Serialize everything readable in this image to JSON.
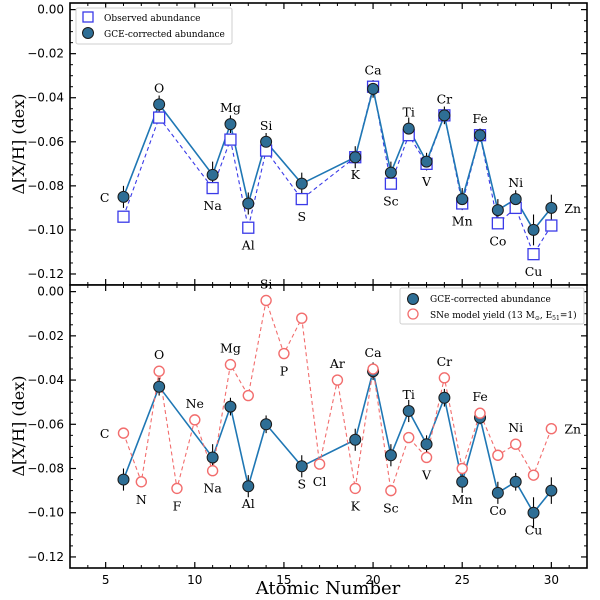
{
  "chart_data": [
    {
      "type": "scatter",
      "panel": "top",
      "xlim": [
        3,
        32
      ],
      "ylim": [
        -0.125,
        0.003
      ],
      "ylabel": "Δ[X/H] (dex)",
      "yticks": [
        0.0,
        -0.02,
        -0.04,
        -0.06,
        -0.08,
        -0.1,
        -0.12
      ],
      "ytick_labels": [
        "0.00",
        "−0.02",
        "−0.04",
        "−0.06",
        "−0.08",
        "−0.10",
        "−0.12"
      ],
      "legend": {
        "position": "top-left",
        "entries": [
          "Observed abundance",
          "GCE-corrected abundance"
        ]
      },
      "series": [
        {
          "name": "Observed abundance",
          "marker": "square",
          "color": "#3a3ae8",
          "line_style": "dashed",
          "points": [
            {
              "element": "C",
              "x": 6,
              "y": -0.094
            },
            {
              "element": "O",
              "x": 8,
              "y": -0.049
            },
            {
              "element": "Na",
              "x": 11,
              "y": -0.081
            },
            {
              "element": "Mg",
              "x": 12,
              "y": -0.059
            },
            {
              "element": "Al",
              "x": 13,
              "y": -0.099
            },
            {
              "element": "Si",
              "x": 14,
              "y": -0.064
            },
            {
              "element": "S",
              "x": 16,
              "y": -0.086
            },
            {
              "element": "K",
              "x": 19,
              "y": -0.067
            },
            {
              "element": "Ca",
              "x": 20,
              "y": -0.035
            },
            {
              "element": "Sc",
              "x": 21,
              "y": -0.079
            },
            {
              "element": "Ti",
              "x": 22,
              "y": -0.057
            },
            {
              "element": "V",
              "x": 23,
              "y": -0.07
            },
            {
              "element": "Cr",
              "x": 24,
              "y": -0.048
            },
            {
              "element": "Mn",
              "x": 25,
              "y": -0.088
            },
            {
              "element": "Fe",
              "x": 26,
              "y": -0.057
            },
            {
              "element": "Co",
              "x": 27,
              "y": -0.097
            },
            {
              "element": "Ni",
              "x": 28,
              "y": -0.09
            },
            {
              "element": "Cu",
              "x": 29,
              "y": -0.111
            },
            {
              "element": "Zn",
              "x": 30,
              "y": -0.098
            }
          ]
        },
        {
          "name": "GCE-corrected abundance",
          "marker": "circle",
          "color": "#2e6e95",
          "line_color": "#1f77b4",
          "line_style": "solid",
          "points": [
            {
              "element": "C",
              "x": 6,
              "y": -0.085,
              "err": 0.005
            },
            {
              "element": "O",
              "x": 8,
              "y": -0.043,
              "err": 0.004
            },
            {
              "element": "Na",
              "x": 11,
              "y": -0.075,
              "err": 0.006
            },
            {
              "element": "Mg",
              "x": 12,
              "y": -0.052,
              "err": 0.004
            },
            {
              "element": "Al",
              "x": 13,
              "y": -0.088,
              "err": 0.005
            },
            {
              "element": "Si",
              "x": 14,
              "y": -0.06,
              "err": 0.004
            },
            {
              "element": "S",
              "x": 16,
              "y": -0.079,
              "err": 0.005
            },
            {
              "element": "K",
              "x": 19,
              "y": -0.067,
              "err": 0.005
            },
            {
              "element": "Ca",
              "x": 20,
              "y": -0.036,
              "err": 0.004
            },
            {
              "element": "Sc",
              "x": 21,
              "y": -0.074,
              "err": 0.005
            },
            {
              "element": "Ti",
              "x": 22,
              "y": -0.054,
              "err": 0.005
            },
            {
              "element": "V",
              "x": 23,
              "y": -0.069,
              "err": 0.004
            },
            {
              "element": "Cr",
              "x": 24,
              "y": -0.048,
              "err": 0.004
            },
            {
              "element": "Mn",
              "x": 25,
              "y": -0.086,
              "err": 0.005
            },
            {
              "element": "Fe",
              "x": 26,
              "y": -0.057,
              "err": 0.003
            },
            {
              "element": "Co",
              "x": 27,
              "y": -0.091,
              "err": 0.005
            },
            {
              "element": "Ni",
              "x": 28,
              "y": -0.086,
              "err": 0.004
            },
            {
              "element": "Cu",
              "x": 29,
              "y": -0.1,
              "err": 0.007
            },
            {
              "element": "Zn",
              "x": 30,
              "y": -0.09,
              "err": 0.006
            }
          ]
        }
      ],
      "element_labels": [
        {
          "text": "C",
          "x": 6,
          "side": "left"
        },
        {
          "text": "O",
          "x": 8,
          "side": "above"
        },
        {
          "text": "Na",
          "x": 11,
          "side": "below"
        },
        {
          "text": "Mg",
          "x": 12,
          "side": "above"
        },
        {
          "text": "Al",
          "x": 13,
          "side": "below"
        },
        {
          "text": "Si",
          "x": 14,
          "side": "above"
        },
        {
          "text": "S",
          "x": 16,
          "side": "below"
        },
        {
          "text": "K",
          "x": 19,
          "side": "below"
        },
        {
          "text": "Ca",
          "x": 20,
          "side": "above"
        },
        {
          "text": "Sc",
          "x": 21,
          "side": "below"
        },
        {
          "text": "Ti",
          "x": 22,
          "side": "above"
        },
        {
          "text": "V",
          "x": 23,
          "side": "below"
        },
        {
          "text": "Cr",
          "x": 24,
          "side": "above"
        },
        {
          "text": "Mn",
          "x": 25,
          "side": "below"
        },
        {
          "text": "Fe",
          "x": 26,
          "side": "above"
        },
        {
          "text": "Co",
          "x": 27,
          "side": "below"
        },
        {
          "text": "Ni",
          "x": 28,
          "side": "above"
        },
        {
          "text": "Cu",
          "x": 29,
          "side": "below"
        },
        {
          "text": "Zn",
          "x": 30,
          "side": "right"
        }
      ]
    },
    {
      "type": "scatter",
      "panel": "bottom",
      "xlim": [
        3,
        32
      ],
      "ylim": [
        -0.125,
        0.003
      ],
      "xlabel": "Atomic Number",
      "ylabel": "Δ[X/H] (dex)",
      "xticks": [
        5,
        10,
        15,
        20,
        25,
        30
      ],
      "yticks": [
        0.0,
        -0.02,
        -0.04,
        -0.06,
        -0.08,
        -0.1,
        -0.12
      ],
      "ytick_labels": [
        "0.00",
        "−0.02",
        "−0.04",
        "−0.06",
        "−0.08",
        "−0.10",
        "−0.12"
      ],
      "legend": {
        "position": "top-right",
        "entries": [
          "GCE-corrected abundance",
          "SNe model yield (13 M",
          "⊙",
          ", E",
          "51",
          "=1)"
        ]
      },
      "series": [
        {
          "name": "GCE-corrected abundance",
          "marker": "circle",
          "color": "#2e6e95",
          "line_color": "#1f77b4",
          "line_style": "solid",
          "points": [
            {
              "element": "C",
              "x": 6,
              "y": -0.085,
              "err": 0.005
            },
            {
              "element": "O",
              "x": 8,
              "y": -0.043,
              "err": 0.004
            },
            {
              "element": "Na",
              "x": 11,
              "y": -0.075,
              "err": 0.006
            },
            {
              "element": "Mg",
              "x": 12,
              "y": -0.052,
              "err": 0.004
            },
            {
              "element": "Al",
              "x": 13,
              "y": -0.088,
              "err": 0.005
            },
            {
              "element": "Si",
              "x": 14,
              "y": -0.06,
              "err": 0.004
            },
            {
              "element": "S",
              "x": 16,
              "y": -0.079,
              "err": 0.005
            },
            {
              "element": "K",
              "x": 19,
              "y": -0.067,
              "err": 0.005
            },
            {
              "element": "Ca",
              "x": 20,
              "y": -0.036,
              "err": 0.004
            },
            {
              "element": "Sc",
              "x": 21,
              "y": -0.074,
              "err": 0.005
            },
            {
              "element": "Ti",
              "x": 22,
              "y": -0.054,
              "err": 0.005
            },
            {
              "element": "V",
              "x": 23,
              "y": -0.069,
              "err": 0.004
            },
            {
              "element": "Cr",
              "x": 24,
              "y": -0.048,
              "err": 0.004
            },
            {
              "element": "Mn",
              "x": 25,
              "y": -0.086,
              "err": 0.005
            },
            {
              "element": "Fe",
              "x": 26,
              "y": -0.057,
              "err": 0.003
            },
            {
              "element": "Co",
              "x": 27,
              "y": -0.091,
              "err": 0.005
            },
            {
              "element": "Ni",
              "x": 28,
              "y": -0.086,
              "err": 0.004
            },
            {
              "element": "Cu",
              "x": 29,
              "y": -0.1,
              "err": 0.007
            },
            {
              "element": "Zn",
              "x": 30,
              "y": -0.09,
              "err": 0.006
            }
          ]
        },
        {
          "name": "SNe model yield (13 M⊙, E51=1)",
          "marker": "open-circle",
          "color": "#f26d6d",
          "line_style": "dashed",
          "points": [
            {
              "element": "C",
              "x": 6,
              "y": -0.064
            },
            {
              "element": "N",
              "x": 7,
              "y": -0.086
            },
            {
              "element": "O",
              "x": 8,
              "y": -0.036
            },
            {
              "element": "F",
              "x": 9,
              "y": -0.089
            },
            {
              "element": "Ne",
              "x": 10,
              "y": -0.058
            },
            {
              "element": "Na",
              "x": 11,
              "y": -0.081
            },
            {
              "element": "Mg",
              "x": 12,
              "y": -0.033
            },
            {
              "element": "Al",
              "x": 13,
              "y": -0.047
            },
            {
              "element": "Si",
              "x": 14,
              "y": -0.004
            },
            {
              "element": "P",
              "x": 15,
              "y": -0.028
            },
            {
              "element": "S",
              "x": 16,
              "y": -0.012
            },
            {
              "element": "Cl",
              "x": 17,
              "y": -0.078
            },
            {
              "element": "Ar",
              "x": 18,
              "y": -0.04
            },
            {
              "element": "K",
              "x": 19,
              "y": -0.089
            },
            {
              "element": "Ca",
              "x": 20,
              "y": -0.035
            },
            {
              "element": "Sc",
              "x": 21,
              "y": -0.09
            },
            {
              "element": "Ti",
              "x": 22,
              "y": -0.066
            },
            {
              "element": "V",
              "x": 23,
              "y": -0.075
            },
            {
              "element": "Cr",
              "x": 24,
              "y": -0.039
            },
            {
              "element": "Mn",
              "x": 25,
              "y": -0.08
            },
            {
              "element": "Fe",
              "x": 26,
              "y": -0.055
            },
            {
              "element": "Co",
              "x": 27,
              "y": -0.074
            },
            {
              "element": "Ni",
              "x": 28,
              "y": -0.069
            },
            {
              "element": "Cu",
              "x": 29,
              "y": -0.083
            },
            {
              "element": "Zn",
              "x": 30,
              "y": -0.062
            }
          ]
        }
      ],
      "element_labels": [
        {
          "text": "C",
          "x": 6,
          "side": "left"
        },
        {
          "text": "N",
          "x": 7,
          "side": "below"
        },
        {
          "text": "O",
          "x": 8,
          "side": "above"
        },
        {
          "text": "F",
          "x": 9,
          "side": "below"
        },
        {
          "text": "Ne",
          "x": 10,
          "side": "above"
        },
        {
          "text": "Na",
          "x": 11,
          "side": "below"
        },
        {
          "text": "Mg",
          "x": 12,
          "side": "above"
        },
        {
          "text": "Al",
          "x": 13,
          "side": "below"
        },
        {
          "text": "Si",
          "x": 14,
          "side": "above"
        },
        {
          "text": "P",
          "x": 15,
          "side": "below"
        },
        {
          "text": "S",
          "x": 16,
          "side": "below"
        },
        {
          "text": "Cl",
          "x": 17,
          "side": "below"
        },
        {
          "text": "Ar",
          "x": 18,
          "side": "above"
        },
        {
          "text": "K",
          "x": 19,
          "side": "below"
        },
        {
          "text": "Ca",
          "x": 20,
          "side": "above"
        },
        {
          "text": "Sc",
          "x": 21,
          "side": "below"
        },
        {
          "text": "Ti",
          "x": 22,
          "side": "above"
        },
        {
          "text": "V",
          "x": 23,
          "side": "below"
        },
        {
          "text": "Cr",
          "x": 24,
          "side": "above"
        },
        {
          "text": "Mn",
          "x": 25,
          "side": "below"
        },
        {
          "text": "Fe",
          "x": 26,
          "side": "above"
        },
        {
          "text": "Co",
          "x": 27,
          "side": "below"
        },
        {
          "text": "Ni",
          "x": 28,
          "side": "above"
        },
        {
          "text": "Cu",
          "x": 29,
          "side": "below"
        },
        {
          "text": "Zn",
          "x": 30,
          "side": "right"
        }
      ]
    }
  ]
}
